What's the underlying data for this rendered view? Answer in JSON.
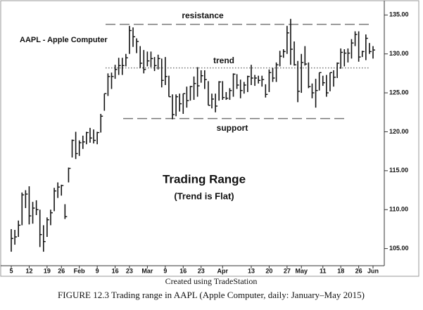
{
  "chart_data": {
    "type": "hlc",
    "label": "AAPL - Apple Computer",
    "title": "Trading Range",
    "subtitle": "(Trend is Flat)",
    "credit": "Created using TradeStation",
    "caption": "FIGURE 12.3 Trading range in AAPL (Apple Computer, daily: January–May 2015)",
    "color": "#111111",
    "categories": [
      "5",
      null,
      null,
      null,
      null,
      "12",
      null,
      null,
      null,
      null,
      "19",
      null,
      null,
      null,
      "26",
      null,
      null,
      null,
      null,
      "Feb",
      null,
      null,
      null,
      null,
      "9",
      null,
      null,
      null,
      null,
      "16",
      null,
      null,
      null,
      "23",
      null,
      null,
      null,
      null,
      "Mar",
      null,
      null,
      null,
      null,
      "9",
      null,
      null,
      null,
      null,
      "16",
      null,
      null,
      null,
      null,
      "23",
      null,
      null,
      null,
      null,
      null,
      "Apr",
      null,
      null,
      null,
      null,
      null,
      null,
      null,
      "13",
      null,
      null,
      null,
      null,
      "20",
      null,
      null,
      null,
      null,
      "27",
      null,
      null,
      null,
      "May",
      null,
      null,
      null,
      null,
      null,
      "11",
      null,
      null,
      null,
      null,
      "18",
      null,
      null,
      null,
      null,
      "26",
      null,
      null,
      null,
      "Jun"
    ],
    "high": [
      107.5,
      107.4,
      108.6,
      112.2,
      112.5,
      113.0,
      111.0,
      111.2,
      110.0,
      108.0,
      109.0,
      110.0,
      112.8,
      113.5,
      113.2,
      110.7,
      115.4,
      119.0,
      120.0,
      118.9,
      119.5,
      120.0,
      120.5,
      120.3,
      120.0,
      122.3,
      124.9,
      127.5,
      127.6,
      128.6,
      129.5,
      129.5,
      130.0,
      133.6,
      133.4,
      132.0,
      131.0,
      130.5,
      130.3,
      130.3,
      129.6,
      129.9,
      129.4,
      129.6,
      127.2,
      124.8,
      124.8,
      124.9,
      124.9,
      125.8,
      125.9,
      127.1,
      128.3,
      127.9,
      127.9,
      126.5,
      124.9,
      124.9,
      126.5,
      126.5,
      125.1,
      125.6,
      127.5,
      127.4,
      126.7,
      126.4,
      127.2,
      128.6,
      127.3,
      127.2,
      127.2,
      126.1,
      128.0,
      128.2,
      128.9,
      130.4,
      130.6,
      133.6,
      134.5,
      131.6,
      129.1,
      130.0,
      131.0,
      128.9,
      126.2,
      126.8,
      127.6,
      127.2,
      127.3,
      127.6,
      127.9,
      128.9,
      130.7,
      130.6,
      130.7,
      131.9,
      132.9,
      132.9,
      130.4,
      132.5,
      131.4,
      131.0
    ],
    "low": [
      104.6,
      105.5,
      106.5,
      108.0,
      110.2,
      108.1,
      108.2,
      109.3,
      105.2,
      104.6,
      106.5,
      108.0,
      109.8,
      111.5,
      111.8,
      108.8,
      113.5,
      116.7,
      116.5,
      116.9,
      117.8,
      118.4,
      118.6,
      118.5,
      118.4,
      119.9,
      122.7,
      124.6,
      125.5,
      126.8,
      127.3,
      127.3,
      128.4,
      130.0,
      130.9,
      130.1,
      128.2,
      127.5,
      128.4,
      128.3,
      127.8,
      128.0,
      125.7,
      126.0,
      124.5,
      121.6,
      122.0,
      122.6,
      122.3,
      123.1,
      124.0,
      124.1,
      124.5,
      126.3,
      125.5,
      123.4,
      123.0,
      122.5,
      124.0,
      124.1,
      124.1,
      124.1,
      124.5,
      125.5,
      124.3,
      124.9,
      125.1,
      126.0,
      125.9,
      126.2,
      125.8,
      124.4,
      125.1,
      126.4,
      126.4,
      128.4,
      129.5,
      130.0,
      128.6,
      128.5,
      123.8,
      125.0,
      128.5,
      125.6,
      124.3,
      123.1,
      125.3,
      125.9,
      124.5,
      125.2,
      125.8,
      126.9,
      128.1,
      128.4,
      128.9,
      129.4,
      131.0,
      129.0,
      129.6,
      129.2,
      130.0,
      129.4
    ],
    "close": [
      106.3,
      106.5,
      108.0,
      111.9,
      112.0,
      109.2,
      110.2,
      110.0,
      106.8,
      105.9,
      108.7,
      109.6,
      112.4,
      112.9,
      113.1,
      109.1,
      115.3,
      118.9,
      117.2,
      118.6,
      118.7,
      119.9,
      119.2,
      118.9,
      119.9,
      122.0,
      124.9,
      127.1,
      127.1,
      128.0,
      128.5,
      128.5,
      129.5,
      133.0,
      132.2,
      131.6,
      128.8,
      128.0,
      129.1,
      129.4,
      128.5,
      129.4,
      126.6,
      127.1,
      124.5,
      122.2,
      124.5,
      123.6,
      124.9,
      124.0,
      125.8,
      126.2,
      125.9,
      127.2,
      126.7,
      123.4,
      124.2,
      123.3,
      126.4,
      124.4,
      124.3,
      125.3,
      127.4,
      126.0,
      125.3,
      126.0,
      127.1,
      126.9,
      126.9,
      126.6,
      126.7,
      124.8,
      127.6,
      126.9,
      128.6,
      129.7,
      130.3,
      132.7,
      130.6,
      128.6,
      125.2,
      128.9,
      128.7,
      125.8,
      125.0,
      125.3,
      127.6,
      126.3,
      125.0,
      127.6,
      127.0,
      128.8,
      130.2,
      130.1,
      130.1,
      131.4,
      132.5,
      129.6,
      130.3,
      132.0,
      130.3,
      130.5
    ],
    "annotations": [
      {
        "text": "resistance",
        "value": 133.8
      },
      {
        "text": "trend",
        "value": 128.2
      },
      {
        "text": "support",
        "value": 121.7
      }
    ],
    "ylim": [
      102.8,
      136.2
    ],
    "yticks": [
      {
        "value": 105,
        "label": "105.00"
      },
      {
        "value": 110,
        "label": "110.00"
      },
      {
        "value": 115,
        "label": "115.00"
      },
      {
        "value": 120,
        "label": "120.00"
      },
      {
        "value": 125,
        "label": "125.00"
      },
      {
        "value": 130,
        "label": "130.00"
      },
      {
        "value": 135,
        "label": "135.00"
      }
    ]
  }
}
